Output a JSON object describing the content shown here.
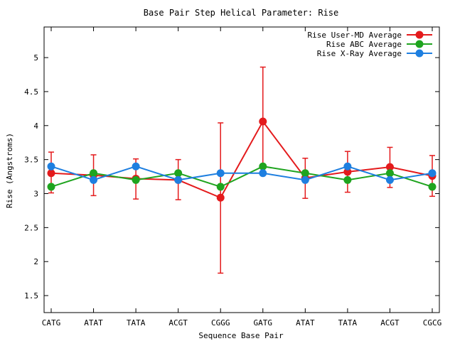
{
  "chart_data": {
    "type": "line",
    "title": "Base Pair Step Helical Parameter: Rise",
    "xlabel": "Sequence Base Pair",
    "ylabel": "Rise (Angstroms)",
    "categories": [
      "CATG",
      "ATAT",
      "TATA",
      "ACGT",
      "CGGG",
      "GATG",
      "ATAT",
      "TATA",
      "ACGT",
      "CGCG"
    ],
    "ylim": [
      1.25,
      5.45
    ],
    "yticks": [
      1.5,
      2,
      2.5,
      3,
      3.5,
      4,
      4.5,
      5
    ],
    "ytick_labels": [
      "1.5",
      "2",
      "2.5",
      "3",
      "3.5",
      "4",
      "4.5",
      "5"
    ],
    "grid": false,
    "legend_position": "top-right",
    "series": [
      {
        "name": "Rise User-MD Average",
        "color": "#e41a1c",
        "values": [
          3.3,
          3.27,
          3.22,
          3.2,
          2.94,
          4.06,
          3.23,
          3.32,
          3.39,
          3.26
        ],
        "err_low": [
          3.01,
          2.97,
          2.92,
          2.91,
          1.83,
          3.41,
          2.93,
          3.02,
          3.09,
          2.96
        ],
        "err_high": [
          3.61,
          3.57,
          3.51,
          3.5,
          4.04,
          4.86,
          3.52,
          3.62,
          3.68,
          3.56
        ]
      },
      {
        "name": "Rise ABC Average",
        "color": "#1fa41f",
        "values": [
          3.1,
          3.3,
          3.2,
          3.3,
          3.1,
          3.4,
          3.3,
          3.2,
          3.3,
          3.1
        ]
      },
      {
        "name": "Rise X-Ray Average",
        "color": "#1e7fe0",
        "values": [
          3.4,
          3.2,
          3.4,
          3.2,
          3.3,
          3.3,
          3.2,
          3.4,
          3.2,
          3.3
        ]
      }
    ]
  }
}
